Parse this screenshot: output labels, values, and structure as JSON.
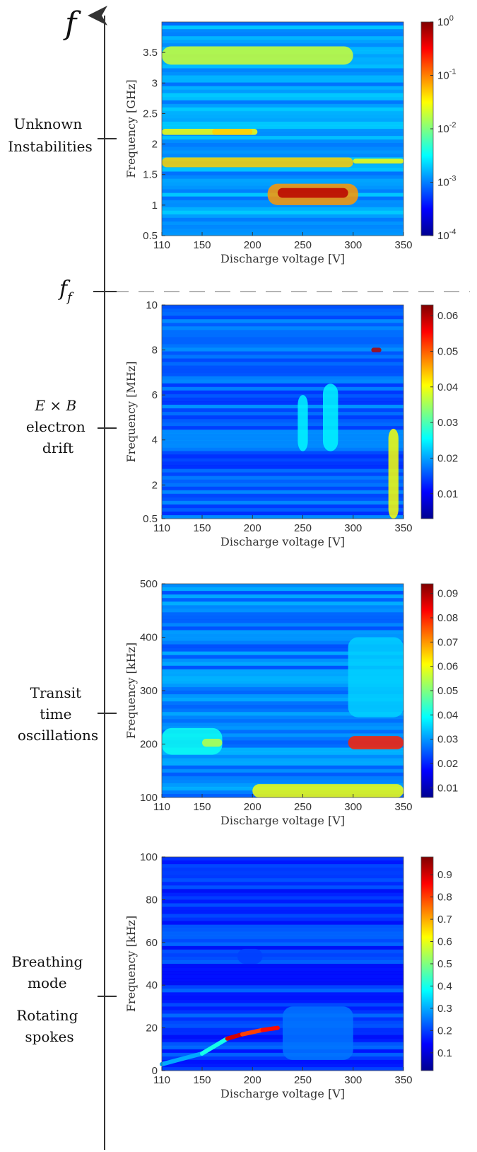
{
  "axis": {
    "top_symbol": "f",
    "divider_symbol": "f",
    "divider_subscript": "f"
  },
  "regimes": [
    {
      "lines": [
        "Unknown",
        "Instabilities"
      ]
    },
    {
      "lines": [
        "E × B",
        "electron",
        "drift"
      ]
    },
    {
      "lines": [
        "Transit",
        "time",
        "oscillations"
      ]
    },
    {
      "lines": [
        "Breathing",
        "mode",
        "",
        "Rotating",
        "spokes"
      ]
    }
  ],
  "colors": {
    "axis": "#333333",
    "divider": "#888888"
  },
  "chart_data": [
    {
      "type": "heatmap",
      "title": "",
      "xlabel": "Discharge voltage [V]",
      "ylabel": "Frequency [GHz]",
      "xlim": [
        110,
        350
      ],
      "ylim": [
        0.5,
        4.0
      ],
      "xticks": [
        "110",
        "150",
        "200",
        "250",
        "300",
        "350"
      ],
      "xtick_values": [
        110,
        150,
        200,
        250,
        300,
        350
      ],
      "yticks": [
        "0.5",
        "1",
        "1.5",
        "2",
        "2.5",
        "3",
        "3.5"
      ],
      "ytick_values": [
        0.5,
        1,
        1.5,
        2,
        2.5,
        3,
        3.5
      ],
      "colorbar": {
        "scale": "log",
        "ticks": [
          "10^0",
          "10^-1",
          "10^-2",
          "10^-3",
          "10^-4"
        ],
        "tick_values": [
          1,
          0.1,
          0.01,
          0.001,
          0.0001
        ],
        "min": 0.0001,
        "max": 1
      },
      "features": [
        {
          "x": [
            110,
            300
          ],
          "y": [
            1.62,
            1.78
          ],
          "value": 0.05
        },
        {
          "x": [
            300,
            350
          ],
          "y": [
            1.68,
            1.76
          ],
          "value": 0.03
        },
        {
          "x": [
            110,
            205
          ],
          "y": [
            2.15,
            2.25
          ],
          "value": 0.03
        },
        {
          "x": [
            160,
            200
          ],
          "y": [
            2.15,
            2.25
          ],
          "value": 0.05
        },
        {
          "x": [
            215,
            305
          ],
          "y": [
            1.0,
            1.35
          ],
          "value": 0.08
        },
        {
          "x": [
            225,
            295
          ],
          "y": [
            1.12,
            1.28
          ],
          "value": 0.6
        },
        {
          "x": [
            110,
            300
          ],
          "y": [
            3.3,
            3.6
          ],
          "value": 0.02
        }
      ]
    },
    {
      "type": "heatmap",
      "title": "",
      "xlabel": "Discharge voltage [V]",
      "ylabel": "Frequency [MHz]",
      "xlim": [
        110,
        350
      ],
      "ylim": [
        0.5,
        10
      ],
      "xticks": [
        "110",
        "150",
        "200",
        "250",
        "300",
        "350"
      ],
      "xtick_values": [
        110,
        150,
        200,
        250,
        300,
        350
      ],
      "yticks": [
        "0.5",
        "2",
        "4",
        "6",
        "8",
        "10"
      ],
      "ytick_values": [
        0.5,
        2,
        4,
        6,
        8,
        10
      ],
      "colorbar": {
        "scale": "linear",
        "ticks": [
          "0.06",
          "0.05",
          "0.04",
          "0.03",
          "0.02",
          "0.01"
        ],
        "tick_values": [
          0.06,
          0.05,
          0.04,
          0.03,
          0.02,
          0.01
        ],
        "min": 0.003,
        "max": 0.063
      },
      "features": [
        {
          "x": [
            318,
            328
          ],
          "y": [
            7.9,
            8.1
          ],
          "value": 0.06
        },
        {
          "x": [
            335,
            345
          ],
          "y": [
            0.5,
            4.5
          ],
          "value": 0.04
        },
        {
          "x": [
            245,
            255
          ],
          "y": [
            3.5,
            6
          ],
          "value": 0.025
        },
        {
          "x": [
            270,
            285
          ],
          "y": [
            3.5,
            6.5
          ],
          "value": 0.025
        }
      ]
    },
    {
      "type": "heatmap",
      "title": "",
      "xlabel": "Discharge voltage [V]",
      "ylabel": "Frequency [kHz]",
      "xlim": [
        110,
        350
      ],
      "ylim": [
        100,
        500
      ],
      "xticks": [
        "110",
        "150",
        "200",
        "250",
        "300",
        "350"
      ],
      "xtick_values": [
        110,
        150,
        200,
        250,
        300,
        350
      ],
      "yticks": [
        "100",
        "200",
        "300",
        "400",
        "500"
      ],
      "ytick_values": [
        100,
        200,
        300,
        400,
        500
      ],
      "colorbar": {
        "scale": "linear",
        "ticks": [
          "0.09",
          "0.08",
          "0.07",
          "0.06",
          "0.05",
          "0.04",
          "0.03",
          "0.02",
          "0.01"
        ],
        "tick_values": [
          0.09,
          0.08,
          0.07,
          0.06,
          0.05,
          0.04,
          0.03,
          0.02,
          0.01
        ],
        "min": 0.006,
        "max": 0.094
      },
      "features": [
        {
          "x": [
            110,
            170
          ],
          "y": [
            180,
            230
          ],
          "value": 0.04
        },
        {
          "x": [
            150,
            170
          ],
          "y": [
            195,
            210
          ],
          "value": 0.055
        },
        {
          "x": [
            295,
            350
          ],
          "y": [
            190,
            215
          ],
          "value": 0.08
        },
        {
          "x": [
            200,
            350
          ],
          "y": [
            100,
            125
          ],
          "value": 0.06
        },
        {
          "x": [
            295,
            350
          ],
          "y": [
            250,
            400
          ],
          "value": 0.035
        }
      ]
    },
    {
      "type": "heatmap",
      "title": "",
      "xlabel": "Discharge voltage [V]",
      "ylabel": "Frequency [kHz]",
      "xlim": [
        110,
        350
      ],
      "ylim": [
        0,
        100
      ],
      "xticks": [
        "110",
        "150",
        "200",
        "250",
        "300",
        "350"
      ],
      "xtick_values": [
        110,
        150,
        200,
        250,
        300,
        350
      ],
      "yticks": [
        "0",
        "20",
        "40",
        "60",
        "80",
        "100"
      ],
      "ytick_values": [
        0,
        20,
        40,
        60,
        80,
        100
      ],
      "colorbar": {
        "scale": "linear",
        "ticks": [
          "0.9",
          "0.8",
          "0.7",
          "0.6",
          "0.5",
          "0.4",
          "0.3",
          "0.2",
          "0.1"
        ],
        "tick_values": [
          0.9,
          0.8,
          0.7,
          0.6,
          0.5,
          0.4,
          0.3,
          0.2,
          0.1
        ],
        "min": 0.02,
        "max": 0.98
      },
      "ridge": {
        "x": [
          110,
          150,
          175,
          190,
          210,
          225
        ],
        "y": [
          3,
          8,
          15,
          17,
          19,
          20
        ],
        "value": [
          0.3,
          0.4,
          0.9,
          0.8,
          0.85,
          0.6
        ]
      },
      "features": [
        {
          "x": [
            230,
            300
          ],
          "y": [
            5,
            30
          ],
          "value": 0.25
        },
        {
          "x": [
            185,
            210
          ],
          "y": [
            50,
            57
          ],
          "value": 0.2
        }
      ]
    }
  ]
}
